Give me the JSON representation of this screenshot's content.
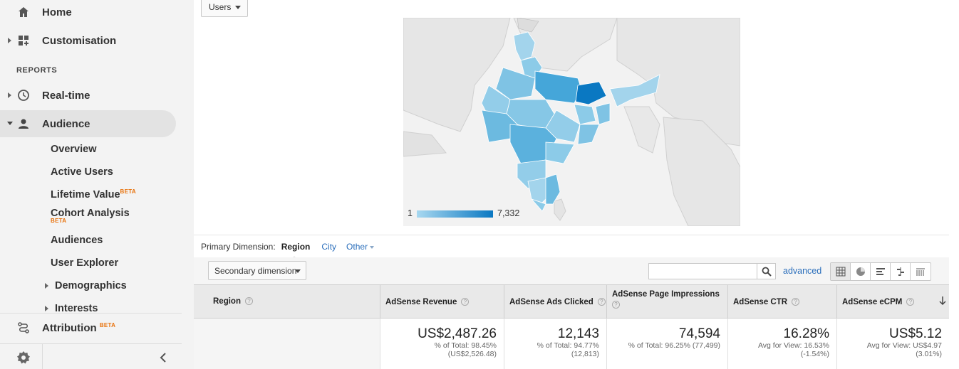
{
  "sidebar": {
    "home": "Home",
    "customisation": "Customisation",
    "reports_label": "REPORTS",
    "realtime": "Real-time",
    "audience": "Audience",
    "audience_items": {
      "overview": "Overview",
      "active_users": "Active Users",
      "lifetime_value": "Lifetime Value",
      "cohort_analysis": "Cohort Analysis",
      "audiences": "Audiences",
      "user_explorer": "User Explorer",
      "demographics": "Demographics",
      "interests": "Interests"
    },
    "beta": "BETA",
    "attribution": "Attribution"
  },
  "map": {
    "metric_select": "Users",
    "legend_min": "1",
    "legend_max": "7,332",
    "colors": {
      "low": "#a8d8f0",
      "high": "#0a78c2"
    }
  },
  "dimension": {
    "label": "Primary Dimension:",
    "active": "Region",
    "city": "City",
    "other": "Other"
  },
  "toolbar": {
    "secondary": "Secondary dimension",
    "search_placeholder": "",
    "advanced": "advanced"
  },
  "table": {
    "headers": [
      "Region",
      "AdSense Revenue",
      "AdSense Ads Clicked",
      "AdSense Page Impressions",
      "AdSense CTR",
      "AdSense eCPM"
    ],
    "totals": {
      "revenue": {
        "value": "US$2,487.26",
        "line1": "% of Total: 98.45%",
        "line2": "(US$2,526.48)"
      },
      "clicked": {
        "value": "12,143",
        "line1": "% of Total: 94.77%",
        "line2": "(12,813)"
      },
      "impressions": {
        "value": "74,594",
        "line1": "% of Total: 96.25% (77,499)"
      },
      "ctr": {
        "value": "16.28%",
        "line1": "Avg for View: 16.53%",
        "line2": "(-1.54%)"
      },
      "ecpm": {
        "value": "US$5.12",
        "line1": "Avg for View: US$4.97",
        "line2": "(3.01%)"
      }
    }
  }
}
